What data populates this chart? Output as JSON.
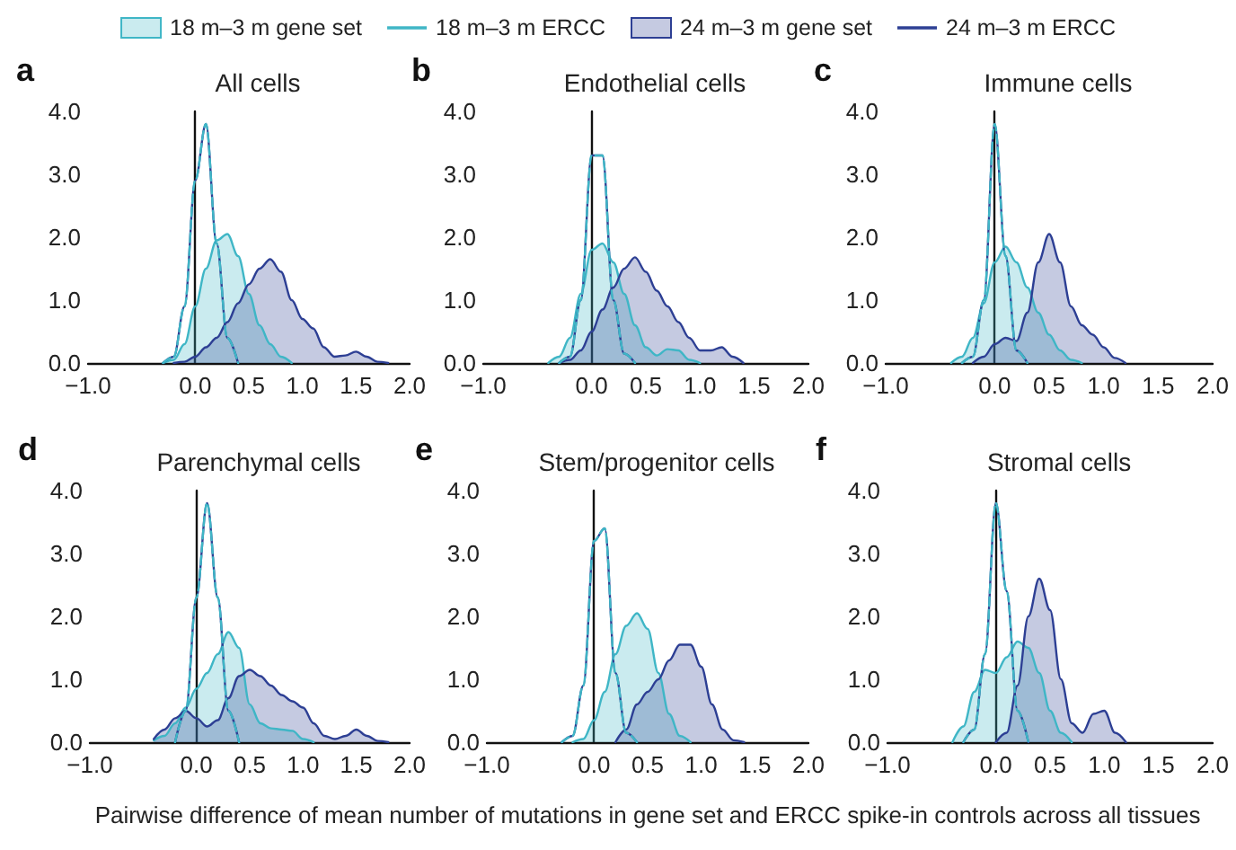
{
  "chart_data": [
    {
      "type": "area",
      "title": "All cells",
      "annotations": [
        "a"
      ],
      "legend": "top",
      "marker": "none",
      "x": [
        -0.3,
        -0.2,
        -0.1,
        0,
        0.1,
        0.2,
        0.3,
        0.4,
        0.5,
        0.6,
        0.7,
        0.8,
        0.9,
        1.0,
        1.1,
        1.2,
        1.3,
        1.4,
        1.5,
        1.6,
        1.7,
        1.8
      ],
      "xlim": [
        -1,
        2
      ],
      "xticks": [
        {
          "value": -1,
          "label": "−1.0"
        },
        {
          "value": 0,
          "label": "0.0"
        },
        {
          "value": 0.5,
          "label": "0.5"
        },
        {
          "value": 1,
          "label": "1.0"
        },
        {
          "value": 1.5,
          "label": "1.5"
        },
        {
          "value": 2,
          "label": "2.0"
        }
      ],
      "ylim": [
        0,
        4
      ],
      "yticks": [
        {
          "value": 0,
          "label": "0.0"
        },
        {
          "value": 1,
          "label": "1.0"
        },
        {
          "value": 2,
          "label": "2.0"
        },
        {
          "value": 3,
          "label": "3.0"
        },
        {
          "value": 4,
          "label": "4.0"
        }
      ],
      "series": [
        {
          "name": "18 m–3 m gene set",
          "type": "area",
          "color": "#3fb6c6",
          "values": [
            0,
            0.05,
            0.3,
            0.9,
            1.5,
            1.95,
            2.05,
            1.7,
            1.1,
            0.6,
            0.3,
            0.1,
            0,
            null,
            null,
            null,
            null,
            null,
            null,
            null,
            null,
            null
          ]
        },
        {
          "name": "18 m–3 m ERCC",
          "type": "line",
          "line_style": "dashed",
          "color": "#3fb6c6",
          "values": [
            0,
            0.1,
            0.9,
            2.9,
            3.8,
            1.9,
            0.4,
            0,
            null,
            null,
            null,
            null,
            null,
            null,
            null,
            null,
            null,
            null,
            null,
            null,
            null,
            null
          ]
        },
        {
          "name": "24 m–3 m gene set",
          "type": "area",
          "color": "#2d3f94",
          "values": [
            null,
            0,
            0.02,
            0.1,
            0.25,
            0.4,
            0.65,
            0.95,
            1.25,
            1.5,
            1.65,
            1.45,
            1.0,
            0.7,
            0.55,
            0.25,
            0.1,
            0.12,
            0.18,
            0.1,
            0.02,
            0
          ]
        },
        {
          "name": "24 m–3 m ERCC",
          "type": "line",
          "line_style": "solid",
          "color": "#2d3f94",
          "values": [
            0,
            0.1,
            0.9,
            2.9,
            3.8,
            1.9,
            0.4,
            0,
            null,
            null,
            null,
            null,
            null,
            null,
            null,
            null,
            null,
            null,
            null,
            null,
            null,
            null
          ]
        }
      ]
    },
    {
      "type": "area",
      "title": "Endothelial cells",
      "annotations": [
        "b"
      ],
      "marker": "none",
      "x": [
        -0.4,
        -0.3,
        -0.2,
        -0.1,
        0,
        0.1,
        0.2,
        0.3,
        0.4,
        0.5,
        0.6,
        0.7,
        0.8,
        0.9,
        1.0,
        1.1,
        1.2,
        1.3,
        1.4
      ],
      "xlim": [
        -1,
        2
      ],
      "xticks": [
        {
          "value": -1,
          "label": "−1.0"
        },
        {
          "value": 0,
          "label": "0.0"
        },
        {
          "value": 0.5,
          "label": "0.5"
        },
        {
          "value": 1,
          "label": "1.0"
        },
        {
          "value": 1.5,
          "label": "1.5"
        },
        {
          "value": 2,
          "label": "2.0"
        }
      ],
      "ylim": [
        0,
        4
      ],
      "yticks": [
        {
          "value": 0,
          "label": "0.0"
        },
        {
          "value": 1,
          "label": "1.0"
        },
        {
          "value": 2,
          "label": "2.0"
        },
        {
          "value": 3,
          "label": "3.0"
        },
        {
          "value": 4,
          "label": "4.0"
        }
      ],
      "series": [
        {
          "type": "area",
          "color": "#3fb6c6",
          "values": [
            0,
            0.1,
            0.4,
            1.1,
            1.8,
            1.9,
            1.6,
            1.1,
            0.6,
            0.25,
            0.12,
            0.22,
            0.2,
            0.05,
            0,
            null,
            null,
            null,
            null
          ]
        },
        {
          "type": "line",
          "line_style": "dashed",
          "color": "#3fb6c6",
          "values": [
            null,
            0,
            0.1,
            1.0,
            3.3,
            3.3,
            1.0,
            0.15,
            0,
            null,
            null,
            null,
            null,
            null,
            null,
            null,
            null,
            null,
            null
          ]
        },
        {
          "type": "area",
          "color": "#2d3f94",
          "values": [
            null,
            0,
            0.05,
            0.2,
            0.5,
            0.85,
            1.2,
            1.5,
            1.68,
            1.45,
            1.15,
            0.9,
            0.65,
            0.4,
            0.2,
            0.2,
            0.25,
            0.1,
            0
          ]
        },
        {
          "type": "line",
          "line_style": "solid",
          "color": "#2d3f94",
          "values": [
            null,
            0,
            0.1,
            1.0,
            3.3,
            3.3,
            1.0,
            0.15,
            0,
            null,
            null,
            null,
            null,
            null,
            null,
            null,
            null,
            null,
            null
          ]
        }
      ]
    },
    {
      "type": "area",
      "title": "Immune cells",
      "annotations": [
        "c"
      ],
      "marker": "none",
      "x": [
        -0.4,
        -0.3,
        -0.2,
        -0.1,
        0,
        0.1,
        0.2,
        0.3,
        0.4,
        0.5,
        0.6,
        0.7,
        0.8,
        0.9,
        1.0,
        1.1,
        1.2
      ],
      "xlim": [
        -1,
        2
      ],
      "xticks": [
        {
          "value": -1,
          "label": "−1.0"
        },
        {
          "value": 0,
          "label": "0.0"
        },
        {
          "value": 0.5,
          "label": "0.5"
        },
        {
          "value": 1,
          "label": "1.0"
        },
        {
          "value": 1.5,
          "label": "1.5"
        },
        {
          "value": 2,
          "label": "2.0"
        }
      ],
      "ylim": [
        0,
        4
      ],
      "yticks": [
        {
          "value": 0,
          "label": "0.0"
        },
        {
          "value": 1,
          "label": "1.0"
        },
        {
          "value": 2,
          "label": "2.0"
        },
        {
          "value": 3,
          "label": "3.0"
        },
        {
          "value": 4,
          "label": "4.0"
        }
      ],
      "series": [
        {
          "type": "area",
          "color": "#3fb6c6",
          "values": [
            0,
            0.1,
            0.4,
            0.95,
            1.6,
            1.85,
            1.6,
            1.2,
            0.8,
            0.45,
            0.2,
            0.05,
            0,
            null,
            null,
            null,
            null
          ]
        },
        {
          "type": "line",
          "line_style": "dashed",
          "color": "#3fb6c6",
          "values": [
            null,
            0,
            0.1,
            1.0,
            3.8,
            1.7,
            0.2,
            0,
            null,
            null,
            null,
            null,
            null,
            null,
            null,
            null,
            null
          ]
        },
        {
          "type": "area",
          "color": "#2d3f94",
          "values": [
            null,
            null,
            0,
            0.1,
            0.3,
            0.4,
            0.35,
            0.8,
            1.6,
            2.05,
            1.6,
            0.9,
            0.6,
            0.45,
            0.25,
            0.08,
            0
          ]
        },
        {
          "type": "line",
          "line_style": "solid",
          "color": "#2d3f94",
          "values": [
            null,
            0,
            0.1,
            1.0,
            3.8,
            1.7,
            0.2,
            0,
            null,
            null,
            null,
            null,
            null,
            null,
            null,
            null,
            null
          ]
        }
      ]
    },
    {
      "type": "area",
      "title": "Parenchymal cells",
      "annotations": [
        "d"
      ],
      "marker": "none",
      "x": [
        -0.4,
        -0.3,
        -0.2,
        -0.1,
        0,
        0.1,
        0.2,
        0.3,
        0.4,
        0.5,
        0.6,
        0.7,
        0.8,
        0.9,
        1.0,
        1.1,
        1.2,
        1.3,
        1.4,
        1.5,
        1.6,
        1.7,
        1.8
      ],
      "xlim": [
        -1,
        2
      ],
      "xticks": [
        {
          "value": -1,
          "label": "−1.0"
        },
        {
          "value": 0,
          "label": "0.0"
        },
        {
          "value": 0.5,
          "label": "0.5"
        },
        {
          "value": 1,
          "label": "1.0"
        },
        {
          "value": 1.5,
          "label": "1.5"
        },
        {
          "value": 2,
          "label": "2.0"
        }
      ],
      "ylim": [
        0,
        4
      ],
      "yticks": [
        {
          "value": 0,
          "label": "0.0"
        },
        {
          "value": 1,
          "label": "1.0"
        },
        {
          "value": 2,
          "label": "2.0"
        },
        {
          "value": 3,
          "label": "3.0"
        },
        {
          "value": 4,
          "label": "4.0"
        }
      ],
      "series": [
        {
          "type": "area",
          "color": "#3fb6c6",
          "values": [
            0.03,
            0.1,
            0.3,
            0.55,
            0.85,
            1.1,
            1.4,
            1.75,
            1.5,
            0.6,
            0.3,
            0.22,
            0.2,
            0.18,
            0.05,
            0,
            null,
            null,
            null,
            null,
            null,
            null,
            null
          ]
        },
        {
          "type": "line",
          "line_style": "dashed",
          "color": "#3fb6c6",
          "values": [
            null,
            null,
            0,
            0.5,
            2.3,
            3.8,
            2.3,
            0.5,
            0,
            null,
            null,
            null,
            null,
            null,
            null,
            null,
            null,
            null,
            null,
            null,
            null,
            null,
            null
          ]
        },
        {
          "type": "area",
          "color": "#2d3f94",
          "values": [
            0.05,
            0.2,
            0.38,
            0.5,
            0.38,
            0.25,
            0.35,
            0.7,
            1.05,
            1.15,
            1.05,
            0.9,
            0.75,
            0.65,
            0.55,
            0.3,
            0.1,
            0.05,
            0.1,
            0.2,
            0.1,
            0.02,
            0
          ]
        },
        {
          "type": "line",
          "line_style": "solid",
          "color": "#2d3f94",
          "values": [
            null,
            null,
            0,
            0.5,
            2.3,
            3.8,
            2.3,
            0.5,
            0,
            null,
            null,
            null,
            null,
            null,
            null,
            null,
            null,
            null,
            null,
            null,
            null,
            null,
            null
          ]
        }
      ]
    },
    {
      "type": "area",
      "title": "Stem/progenitor cells",
      "annotations": [
        "e"
      ],
      "marker": "none",
      "xlabel": "Pairwise difference of mean number of mutations in gene set and ERCC spike-in controls across all tissues",
      "x": [
        -0.3,
        -0.2,
        -0.1,
        0,
        0.1,
        0.2,
        0.3,
        0.4,
        0.5,
        0.6,
        0.7,
        0.8,
        0.9,
        1.0,
        1.1,
        1.2,
        1.3,
        1.4
      ],
      "xlim": [
        -1,
        2
      ],
      "xticks": [
        {
          "value": -1,
          "label": "−1.0"
        },
        {
          "value": 0,
          "label": "0.0"
        },
        {
          "value": 0.5,
          "label": "0.5"
        },
        {
          "value": 1,
          "label": "1.0"
        },
        {
          "value": 1.5,
          "label": "1.5"
        },
        {
          "value": 2,
          "label": "2.0"
        }
      ],
      "ylim": [
        0,
        4
      ],
      "yticks": [
        {
          "value": 0,
          "label": "0.0"
        },
        {
          "value": 1,
          "label": "1.0"
        },
        {
          "value": 2,
          "label": "2.0"
        },
        {
          "value": 3,
          "label": "3.0"
        },
        {
          "value": 4,
          "label": "4.0"
        }
      ],
      "series": [
        {
          "type": "area",
          "color": "#3fb6c6",
          "values": [
            null,
            0,
            0.05,
            0.35,
            0.8,
            1.4,
            1.85,
            2.05,
            1.8,
            1.1,
            0.45,
            0.1,
            0,
            null,
            null,
            null,
            null,
            null
          ]
        },
        {
          "type": "line",
          "line_style": "dashed",
          "color": "#3fb6c6",
          "values": [
            0,
            0.1,
            0.9,
            3.2,
            3.4,
            1.1,
            0.15,
            0,
            null,
            null,
            null,
            null,
            null,
            null,
            null,
            null,
            null,
            null
          ]
        },
        {
          "type": "area",
          "color": "#2d3f94",
          "values": [
            null,
            null,
            null,
            null,
            null,
            0,
            0.2,
            0.6,
            0.8,
            1.0,
            1.3,
            1.55,
            1.55,
            1.2,
            0.6,
            0.2,
            0.03,
            0
          ]
        },
        {
          "type": "line",
          "line_style": "solid",
          "color": "#2d3f94",
          "values": [
            0,
            0.1,
            0.9,
            3.2,
            3.4,
            1.1,
            0.15,
            0,
            null,
            null,
            null,
            null,
            null,
            null,
            null,
            null,
            null,
            null
          ]
        }
      ]
    },
    {
      "type": "area",
      "title": "Stromal cells",
      "annotations": [
        "f"
      ],
      "marker": "none",
      "x": [
        -0.4,
        -0.3,
        -0.2,
        -0.1,
        0,
        0.1,
        0.2,
        0.3,
        0.4,
        0.5,
        0.6,
        0.7,
        0.8,
        0.9,
        1.0,
        1.1,
        1.2
      ],
      "xlim": [
        -1,
        2
      ],
      "xticks": [
        {
          "value": -1,
          "label": "−1.0"
        },
        {
          "value": 0,
          "label": "0.0"
        },
        {
          "value": 0.5,
          "label": "0.5"
        },
        {
          "value": 1,
          "label": "1.0"
        },
        {
          "value": 1.5,
          "label": "1.5"
        },
        {
          "value": 2,
          "label": "2.0"
        }
      ],
      "ylim": [
        0,
        4
      ],
      "yticks": [
        {
          "value": 0,
          "label": "0.0"
        },
        {
          "value": 1,
          "label": "1.0"
        },
        {
          "value": 2,
          "label": "2.0"
        },
        {
          "value": 3,
          "label": "3.0"
        },
        {
          "value": 4,
          "label": "4.0"
        }
      ],
      "series": [
        {
          "type": "area",
          "color": "#3fb6c6",
          "values": [
            0,
            0.25,
            0.8,
            1.15,
            1.1,
            1.35,
            1.6,
            1.5,
            1.1,
            0.5,
            0.15,
            0,
            null,
            null,
            null,
            null,
            null
          ]
        },
        {
          "type": "line",
          "line_style": "dashed",
          "color": "#3fb6c6",
          "values": [
            null,
            0,
            0.2,
            1.4,
            3.8,
            2.4,
            0.5,
            0,
            null,
            null,
            null,
            null,
            null,
            null,
            null,
            null,
            null
          ]
        },
        {
          "type": "area",
          "color": "#2d3f94",
          "values": [
            null,
            null,
            null,
            null,
            0,
            0.15,
            0.9,
            2.0,
            2.6,
            2.1,
            1.0,
            0.3,
            0.15,
            0.45,
            0.5,
            0.15,
            0
          ]
        },
        {
          "type": "line",
          "line_style": "solid",
          "color": "#2d3f94",
          "values": [
            null,
            0,
            0.2,
            1.4,
            3.8,
            2.4,
            0.5,
            0,
            null,
            null,
            null,
            null,
            null,
            null,
            null,
            null,
            null
          ]
        }
      ]
    }
  ]
}
